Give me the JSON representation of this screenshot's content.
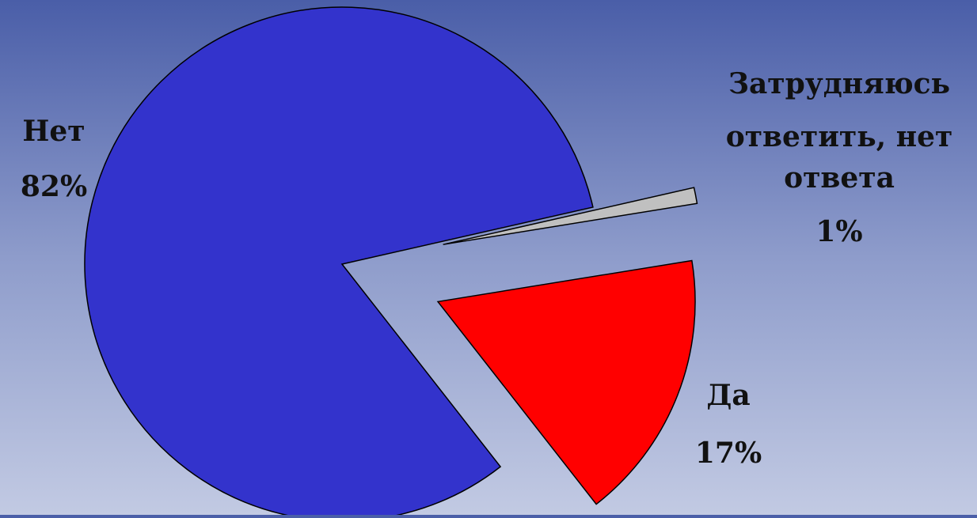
{
  "chart_data": {
    "type": "pie",
    "title": "",
    "slices": [
      {
        "label": "Нет",
        "value": 82,
        "value_label": "82%",
        "color": "#3333cc",
        "exploded": false
      },
      {
        "label": "Затрудняюсь ответить, нет ответа",
        "label_lines": [
          "Затрудняюсь",
          "ответить, нет",
          "ответа"
        ],
        "value": 1,
        "value_label": "1%",
        "color": "#c0c0c0",
        "exploded": true
      },
      {
        "label": "Да",
        "value": 17,
        "value_label": "17%",
        "color": "#ff0000",
        "exploded": true
      }
    ],
    "legend": "none",
    "data_labels": "outside"
  }
}
